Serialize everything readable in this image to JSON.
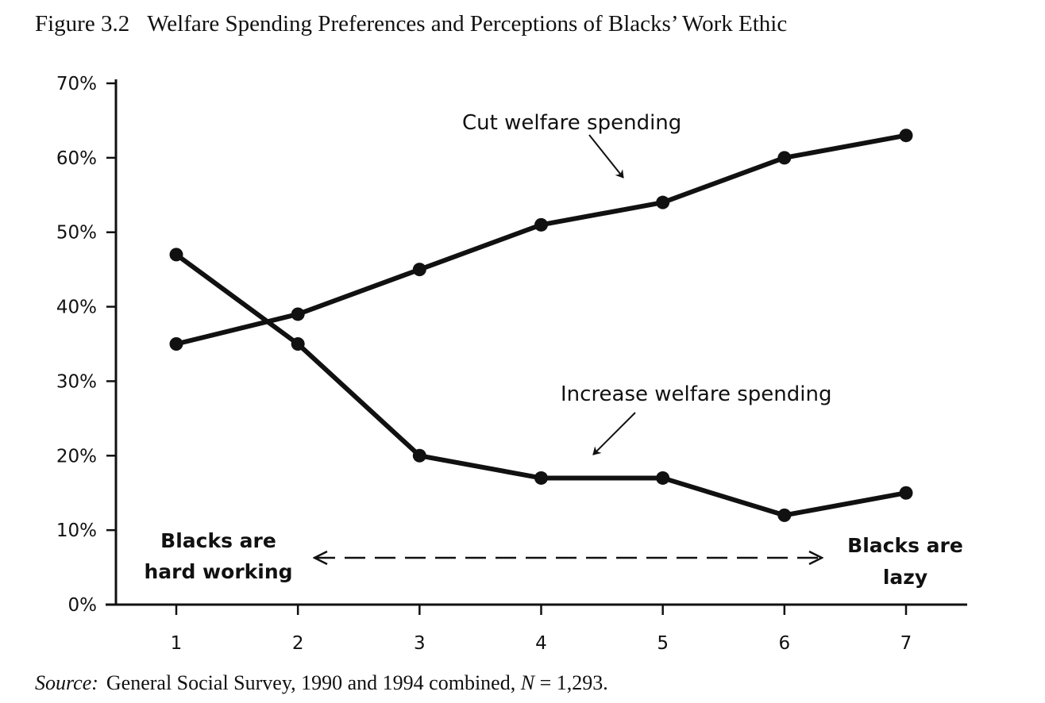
{
  "figure": {
    "number": "Figure 3.2",
    "title": "Welfare Spending Preferences and Perceptions of Blacks’ Work Ethic"
  },
  "source": {
    "label": "Source:",
    "text": "General Social Survey, 1990 and 1994 combined,",
    "n_label": "N",
    "n_value": "= 1,293."
  },
  "chart_data": {
    "type": "line",
    "x": [
      1,
      2,
      3,
      4,
      5,
      6,
      7
    ],
    "xlim": [
      0.5,
      7.5
    ],
    "ylim": [
      0,
      70
    ],
    "y_ticks": [
      "0%",
      "10%",
      "20%",
      "30%",
      "40%",
      "50%",
      "60%",
      "70%"
    ],
    "x_ticks": [
      "1",
      "2",
      "3",
      "4",
      "5",
      "6",
      "7"
    ],
    "grid": false,
    "series": [
      {
        "name": "Cut welfare spending",
        "values": [
          35,
          39,
          45,
          51,
          54,
          60,
          63
        ]
      },
      {
        "name": "Increase welfare spending",
        "values": [
          47,
          35,
          20,
          17,
          17,
          12,
          15
        ]
      }
    ],
    "scale_labels": {
      "left_line1": "Blacks are",
      "left_line2": "hard working",
      "right_line1": "Blacks are",
      "right_line2": "lazy"
    },
    "line_color": "#111111"
  }
}
